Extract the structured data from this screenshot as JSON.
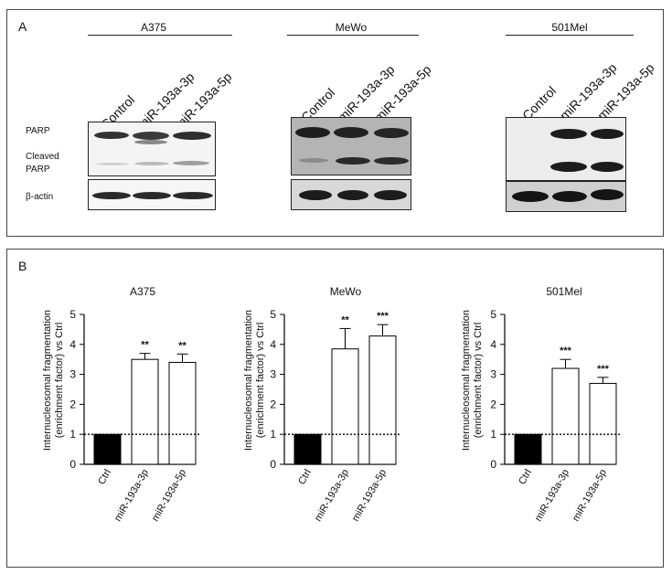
{
  "panel_a": {
    "letter": "A",
    "row_labels": [
      "PARP",
      "Cleaved",
      "PARP",
      "β-actin"
    ],
    "lanes": [
      "Control",
      "miR-193a-3p",
      "miR-193a-5p"
    ],
    "cell_lines": [
      "A375",
      "MeWo",
      "501Mel"
    ]
  },
  "panel_b": {
    "letter": "B"
  },
  "colors": {
    "ctrl_bar": "#000000",
    "treated_bar": "#ffffff",
    "axis": "#000000"
  },
  "chart_data": [
    {
      "type": "bar",
      "title": "A375",
      "ylabel_lines": [
        "Internucleosomal fragmentation",
        "(enrichment factor) vs Ctrl"
      ],
      "categories": [
        "Ctrl",
        "miR-193a-3p",
        "miR-193a-5p"
      ],
      "values": [
        1.0,
        3.5,
        3.4
      ],
      "errors": [
        0,
        0.2,
        0.28
      ],
      "significance": [
        "",
        "**",
        "**"
      ],
      "yticks": [
        "0",
        "1",
        "2",
        "3",
        "4",
        "5"
      ],
      "ylim": [
        0,
        5
      ],
      "reference_line": 1
    },
    {
      "type": "bar",
      "title": "MeWo",
      "ylabel_lines": [
        "Internucleosomal fragmentation",
        "(enrichment factor) vs Ctrl"
      ],
      "categories": [
        "Ctrl",
        "miR-193a-3p",
        "miR-193a-5p"
      ],
      "values": [
        1.0,
        3.85,
        4.28
      ],
      "errors": [
        0,
        0.68,
        0.38
      ],
      "significance": [
        "",
        "**",
        "***"
      ],
      "yticks": [
        "0",
        "1",
        "2",
        "3",
        "4",
        "5"
      ],
      "ylim": [
        0,
        5
      ],
      "reference_line": 1
    },
    {
      "type": "bar",
      "title": "501Mel",
      "ylabel_lines": [
        "Internucleosomal fragmentation",
        "(enrichment factor) vs Ctrl"
      ],
      "categories": [
        "Ctrl",
        "miR-193a-3p",
        "miR-193a-5p"
      ],
      "values": [
        1.0,
        3.2,
        2.7
      ],
      "errors": [
        0,
        0.3,
        0.2
      ],
      "significance": [
        "",
        "***",
        "***"
      ],
      "yticks": [
        "0",
        "1",
        "2",
        "3",
        "4",
        "5"
      ],
      "ylim": [
        0,
        5
      ],
      "reference_line": 1
    }
  ]
}
